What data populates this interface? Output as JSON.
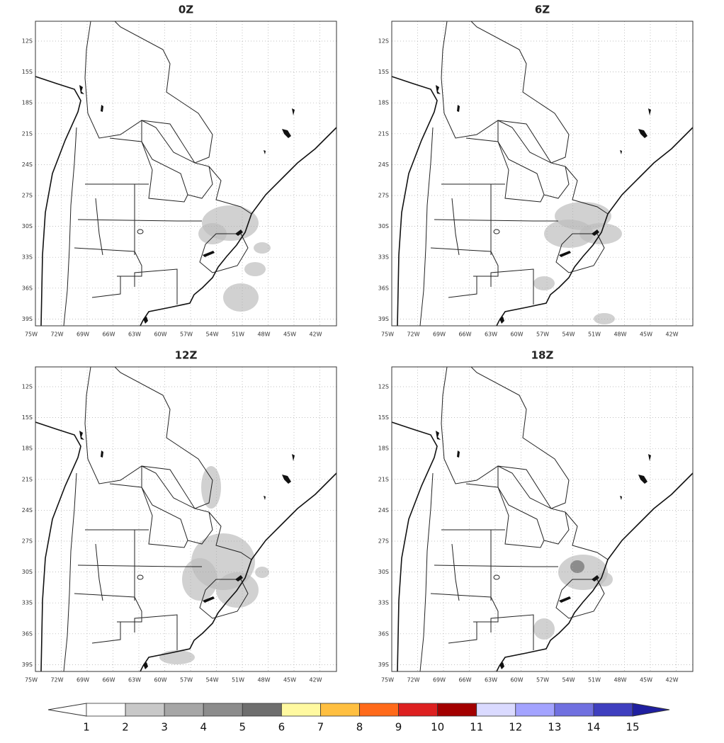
{
  "panels": [
    {
      "title": "0Z"
    },
    {
      "title": "6Z"
    },
    {
      "title": "12Z"
    },
    {
      "title": "18Z"
    }
  ],
  "lat_labels": [
    "12S",
    "15S",
    "18S",
    "21S",
    "24S",
    "27S",
    "30S",
    "33S",
    "36S",
    "39S"
  ],
  "lon_labels": [
    "75W",
    "72W",
    "69W",
    "66W",
    "63W",
    "60W",
    "57W",
    "54W",
    "51W",
    "48W",
    "45W",
    "42W"
  ],
  "colorbar": {
    "levels": [
      1,
      2,
      3,
      4,
      5,
      6,
      7,
      8,
      9,
      10,
      11,
      12,
      13,
      14,
      15
    ],
    "colors": [
      "#ffffff",
      "#ffffff",
      "#c8c8c8",
      "#a6a6a6",
      "#8c8c8c",
      "#6e6e6e",
      "#fff9a0",
      "#ffbf40",
      "#ff6a1a",
      "#dd2020",
      "#a30000",
      "#dadaff",
      "#a3a3ff",
      "#7070e0",
      "#3f3fbf",
      "#1f1fa0"
    ]
  }
}
